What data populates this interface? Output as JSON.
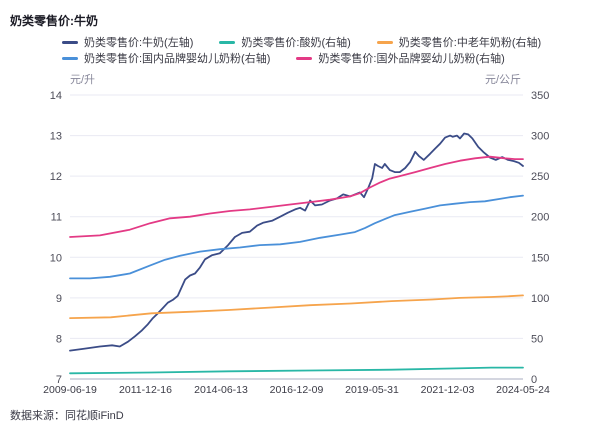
{
  "page": {
    "title": "奶类零售价:牛奶",
    "source_note": "数据来源：同花顺iFinD"
  },
  "chart_data": {
    "type": "line",
    "title": "奶类零售价:牛奶",
    "grid": "horizontal",
    "legend_position": "top",
    "left_axis": {
      "label": "元/升",
      "min": 7,
      "max": 14,
      "ticks": [
        14,
        13,
        12,
        11,
        10,
        9,
        8,
        7
      ]
    },
    "right_axis": {
      "label": "元/公斤",
      "min": 0,
      "max": 350,
      "ticks": [
        350,
        300,
        250,
        200,
        150,
        100,
        50,
        0
      ]
    },
    "x_ticks": [
      "2009-06-19",
      "2011-12-16",
      "2014-06-13",
      "2016-12-09",
      "2019-05-31",
      "2021-12-03",
      "2024-05-24"
    ],
    "series": [
      {
        "key": "milk",
        "name": "奶类零售价:牛奶(左轴)",
        "axis": "left",
        "color": "#3b4c87",
        "points": [
          [
            0,
            7.7
          ],
          [
            0.033,
            7.75
          ],
          [
            0.066,
            7.8
          ],
          [
            0.093,
            7.83
          ],
          [
            0.11,
            7.8
          ],
          [
            0.128,
            7.92
          ],
          [
            0.143,
            8.05
          ],
          [
            0.159,
            8.2
          ],
          [
            0.172,
            8.35
          ],
          [
            0.183,
            8.5
          ],
          [
            0.194,
            8.62
          ],
          [
            0.205,
            8.75
          ],
          [
            0.216,
            8.88
          ],
          [
            0.227,
            8.95
          ],
          [
            0.238,
            9.05
          ],
          [
            0.254,
            9.45
          ],
          [
            0.265,
            9.55
          ],
          [
            0.276,
            9.6
          ],
          [
            0.287,
            9.75
          ],
          [
            0.298,
            9.95
          ],
          [
            0.313,
            10.05
          ],
          [
            0.331,
            10.1
          ],
          [
            0.349,
            10.3
          ],
          [
            0.364,
            10.5
          ],
          [
            0.38,
            10.6
          ],
          [
            0.397,
            10.63
          ],
          [
            0.413,
            10.78
          ],
          [
            0.426,
            10.85
          ],
          [
            0.446,
            10.9
          ],
          [
            0.464,
            11.0
          ],
          [
            0.481,
            11.1
          ],
          [
            0.497,
            11.18
          ],
          [
            0.508,
            11.22
          ],
          [
            0.519,
            11.15
          ],
          [
            0.53,
            11.4
          ],
          [
            0.541,
            11.28
          ],
          [
            0.556,
            11.3
          ],
          [
            0.574,
            11.4
          ],
          [
            0.589,
            11.45
          ],
          [
            0.603,
            11.55
          ],
          [
            0.618,
            11.5
          ],
          [
            0.629,
            11.55
          ],
          [
            0.64,
            11.6
          ],
          [
            0.649,
            11.48
          ],
          [
            0.658,
            11.7
          ],
          [
            0.667,
            11.95
          ],
          [
            0.673,
            12.3
          ],
          [
            0.68,
            12.25
          ],
          [
            0.689,
            12.2
          ],
          [
            0.695,
            12.3
          ],
          [
            0.706,
            12.15
          ],
          [
            0.717,
            12.1
          ],
          [
            0.728,
            12.1
          ],
          [
            0.74,
            12.2
          ],
          [
            0.751,
            12.35
          ],
          [
            0.762,
            12.6
          ],
          [
            0.77,
            12.5
          ],
          [
            0.781,
            12.4
          ],
          [
            0.795,
            12.55
          ],
          [
            0.806,
            12.68
          ],
          [
            0.817,
            12.8
          ],
          [
            0.828,
            12.95
          ],
          [
            0.839,
            13.0
          ],
          [
            0.845,
            12.97
          ],
          [
            0.854,
            13.0
          ],
          [
            0.861,
            12.93
          ],
          [
            0.87,
            13.05
          ],
          [
            0.879,
            13.03
          ],
          [
            0.888,
            12.93
          ],
          [
            0.901,
            12.72
          ],
          [
            0.914,
            12.58
          ],
          [
            0.927,
            12.46
          ],
          [
            0.94,
            12.4
          ],
          [
            0.954,
            12.47
          ],
          [
            0.967,
            12.4
          ],
          [
            0.98,
            12.37
          ],
          [
            0.991,
            12.33
          ],
          [
            1,
            12.25
          ]
        ]
      },
      {
        "key": "yogurt",
        "name": "奶类零售价:酸奶(右轴)",
        "axis": "right",
        "color": "#29b7a6",
        "points": [
          [
            0,
            7
          ],
          [
            0.18,
            8
          ],
          [
            0.35,
            9.5
          ],
          [
            0.53,
            10.5
          ],
          [
            0.71,
            11.5
          ],
          [
            0.84,
            13
          ],
          [
            0.93,
            14
          ],
          [
            1,
            14
          ]
        ]
      },
      {
        "key": "middle-aged-milk-powder",
        "name": "奶类零售价:中老年奶粉(右轴)",
        "axis": "right",
        "color": "#f6a44c",
        "points": [
          [
            0,
            75
          ],
          [
            0.09,
            76
          ],
          [
            0.18,
            81
          ],
          [
            0.27,
            83
          ],
          [
            0.35,
            85
          ],
          [
            0.44,
            88
          ],
          [
            0.53,
            91
          ],
          [
            0.62,
            93
          ],
          [
            0.71,
            96
          ],
          [
            0.8,
            98
          ],
          [
            0.86,
            100
          ],
          [
            0.93,
            101
          ],
          [
            0.97,
            102
          ],
          [
            1,
            103
          ]
        ]
      },
      {
        "key": "domestic-infant-formula",
        "name": "奶类零售价:国内品牌婴幼儿奶粉(右轴)",
        "axis": "right",
        "color": "#4a90d9",
        "points": [
          [
            0,
            124
          ],
          [
            0.044,
            124
          ],
          [
            0.088,
            126
          ],
          [
            0.132,
            130
          ],
          [
            0.177,
            140
          ],
          [
            0.21,
            147
          ],
          [
            0.243,
            152
          ],
          [
            0.287,
            157
          ],
          [
            0.331,
            160
          ],
          [
            0.375,
            162
          ],
          [
            0.419,
            165
          ],
          [
            0.464,
            166
          ],
          [
            0.508,
            169
          ],
          [
            0.552,
            174
          ],
          [
            0.596,
            178
          ],
          [
            0.629,
            181
          ],
          [
            0.651,
            186
          ],
          [
            0.673,
            192
          ],
          [
            0.695,
            197
          ],
          [
            0.717,
            202
          ],
          [
            0.751,
            206
          ],
          [
            0.784,
            210
          ],
          [
            0.817,
            214
          ],
          [
            0.85,
            216
          ],
          [
            0.883,
            218
          ],
          [
            0.916,
            219
          ],
          [
            0.949,
            222
          ],
          [
            0.971,
            224
          ],
          [
            1,
            226
          ]
        ]
      },
      {
        "key": "foreign-infant-formula",
        "name": "奶类零售价:国外品牌婴幼儿奶粉(右轴)",
        "axis": "right",
        "color": "#e33a85",
        "points": [
          [
            0,
            175
          ],
          [
            0.066,
            177
          ],
          [
            0.132,
            184
          ],
          [
            0.177,
            192
          ],
          [
            0.221,
            198
          ],
          [
            0.265,
            200
          ],
          [
            0.309,
            204
          ],
          [
            0.353,
            207
          ],
          [
            0.397,
            209
          ],
          [
            0.441,
            212
          ],
          [
            0.486,
            215
          ],
          [
            0.53,
            218
          ],
          [
            0.574,
            221
          ],
          [
            0.618,
            225
          ],
          [
            0.64,
            229
          ],
          [
            0.662,
            236
          ],
          [
            0.684,
            242
          ],
          [
            0.706,
            247
          ],
          [
            0.728,
            250
          ],
          [
            0.762,
            255
          ],
          [
            0.795,
            260
          ],
          [
            0.828,
            265
          ],
          [
            0.861,
            269
          ],
          [
            0.894,
            272
          ],
          [
            0.927,
            274
          ],
          [
            0.96,
            272
          ],
          [
            0.982,
            271
          ],
          [
            1,
            271
          ]
        ]
      }
    ],
    "colors": {
      "gridline": "#e9eaf3",
      "baseline": "#a9adc0",
      "tick_text": "#4d4d59",
      "xtick_text": "#3b3b46"
    }
  }
}
